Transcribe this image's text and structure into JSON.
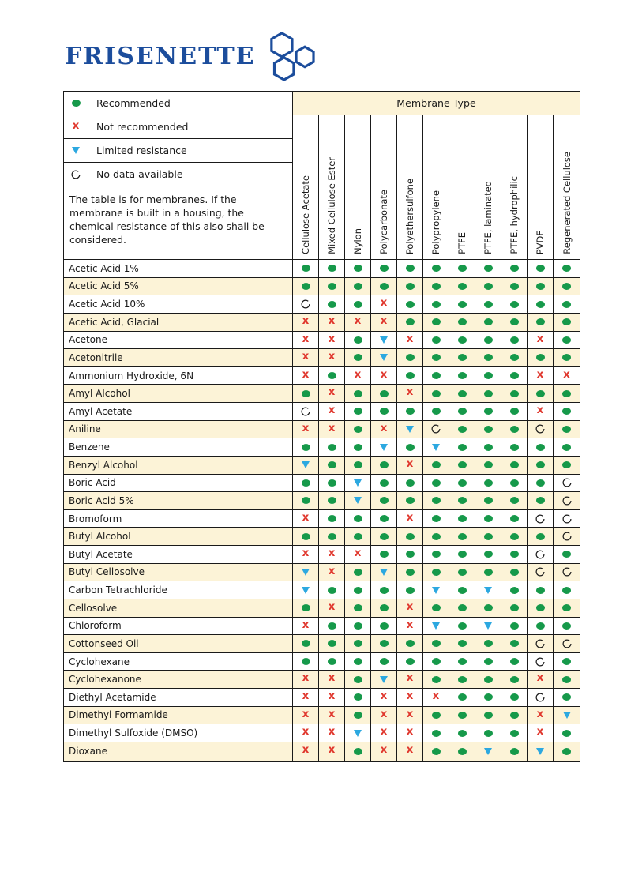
{
  "logo": {
    "text": "FRISENETTE",
    "color": "#1C4D9C"
  },
  "legend": [
    {
      "code": "g",
      "label": "Recommended"
    },
    {
      "code": "x",
      "label": "Not recommended"
    },
    {
      "code": "t",
      "label": "Limited resistance"
    },
    {
      "code": "o",
      "label": "No data available"
    }
  ],
  "note": "The table is for membranes. If the membrane is built in a housing, the chemical resistance of this also shall be considered.",
  "membrane_type_header": "Membrane Type",
  "columns": [
    "Cellulose Acetate",
    "Mixed Cellulose Ester",
    "Nylon",
    "Polycarbonate",
    "Polyethersulfone",
    "Polypropylene",
    "PTFE",
    "PTFE, laminated",
    "PTFE, hydrophilic",
    "PVDF",
    "Regenerated Cellulose"
  ],
  "symbol_key": {
    "g": "recommended",
    "x": "not-recommended",
    "t": "limited-resistance",
    "o": "no-data"
  },
  "rows": [
    {
      "chemical": "Acetic Acid 1%",
      "ratings": [
        "g",
        "g",
        "g",
        "g",
        "g",
        "g",
        "g",
        "g",
        "g",
        "g",
        "g"
      ]
    },
    {
      "chemical": "Acetic Acid 5%",
      "ratings": [
        "g",
        "g",
        "g",
        "g",
        "g",
        "g",
        "g",
        "g",
        "g",
        "g",
        "g"
      ]
    },
    {
      "chemical": "Acetic Acid 10%",
      "ratings": [
        "o",
        "g",
        "g",
        "x",
        "g",
        "g",
        "g",
        "g",
        "g",
        "g",
        "g"
      ]
    },
    {
      "chemical": "Acetic Acid, Glacial",
      "ratings": [
        "x",
        "x",
        "x",
        "x",
        "g",
        "g",
        "g",
        "g",
        "g",
        "g",
        "g"
      ]
    },
    {
      "chemical": "Acetone",
      "ratings": [
        "x",
        "x",
        "g",
        "t",
        "x",
        "g",
        "g",
        "g",
        "g",
        "x",
        "g"
      ]
    },
    {
      "chemical": "Acetonitrile",
      "ratings": [
        "x",
        "x",
        "g",
        "t",
        "g",
        "g",
        "g",
        "g",
        "g",
        "g",
        "g"
      ]
    },
    {
      "chemical": "Ammonium Hydroxide, 6N",
      "ratings": [
        "x",
        "g",
        "x",
        "x",
        "g",
        "g",
        "g",
        "g",
        "g",
        "x",
        "x"
      ]
    },
    {
      "chemical": "Amyl Alcohol",
      "ratings": [
        "g",
        "x",
        "g",
        "g",
        "x",
        "g",
        "g",
        "g",
        "g",
        "g",
        "g"
      ]
    },
    {
      "chemical": "Amyl Acetate",
      "ratings": [
        "o",
        "x",
        "g",
        "g",
        "g",
        "g",
        "g",
        "g",
        "g",
        "x",
        "g"
      ]
    },
    {
      "chemical": "Aniline",
      "ratings": [
        "x",
        "x",
        "g",
        "x",
        "t",
        "o",
        "g",
        "g",
        "g",
        "o",
        "g"
      ]
    },
    {
      "chemical": "Benzene",
      "ratings": [
        "g",
        "g",
        "g",
        "t",
        "g",
        "t",
        "g",
        "g",
        "g",
        "g",
        "g"
      ]
    },
    {
      "chemical": "Benzyl Alcohol",
      "ratings": [
        "t",
        "g",
        "g",
        "g",
        "x",
        "g",
        "g",
        "g",
        "g",
        "g",
        "g"
      ]
    },
    {
      "chemical": "Boric Acid",
      "ratings": [
        "g",
        "g",
        "t",
        "g",
        "g",
        "g",
        "g",
        "g",
        "g",
        "g",
        "o"
      ]
    },
    {
      "chemical": "Boric Acid 5%",
      "ratings": [
        "g",
        "g",
        "t",
        "g",
        "g",
        "g",
        "g",
        "g",
        "g",
        "g",
        "o"
      ]
    },
    {
      "chemical": "Bromoform",
      "ratings": [
        "x",
        "g",
        "g",
        "g",
        "x",
        "g",
        "g",
        "g",
        "g",
        "o",
        "o"
      ]
    },
    {
      "chemical": "Butyl Alcohol",
      "ratings": [
        "g",
        "g",
        "g",
        "g",
        "g",
        "g",
        "g",
        "g",
        "g",
        "g",
        "o"
      ]
    },
    {
      "chemical": "Butyl Acetate",
      "ratings": [
        "x",
        "x",
        "x",
        "g",
        "g",
        "g",
        "g",
        "g",
        "g",
        "o",
        "g"
      ]
    },
    {
      "chemical": "Butyl Cellosolve",
      "ratings": [
        "t",
        "x",
        "g",
        "t",
        "g",
        "g",
        "g",
        "g",
        "g",
        "o",
        "o"
      ]
    },
    {
      "chemical": "Carbon Tetrachloride",
      "ratings": [
        "t",
        "g",
        "g",
        "g",
        "g",
        "t",
        "g",
        "t",
        "g",
        "g",
        "g"
      ]
    },
    {
      "chemical": "Cellosolve",
      "ratings": [
        "g",
        "x",
        "g",
        "g",
        "x",
        "g",
        "g",
        "g",
        "g",
        "g",
        "g"
      ]
    },
    {
      "chemical": "Chloroform",
      "ratings": [
        "x",
        "g",
        "g",
        "g",
        "x",
        "t",
        "g",
        "t",
        "g",
        "g",
        "g"
      ]
    },
    {
      "chemical": "Cottonseed Oil",
      "ratings": [
        "g",
        "g",
        "g",
        "g",
        "g",
        "g",
        "g",
        "g",
        "g",
        "o",
        "o"
      ]
    },
    {
      "chemical": "Cyclohexane",
      "ratings": [
        "g",
        "g",
        "g",
        "g",
        "g",
        "g",
        "g",
        "g",
        "g",
        "o",
        "g"
      ]
    },
    {
      "chemical": "Cyclohexanone",
      "ratings": [
        "x",
        "x",
        "g",
        "t",
        "x",
        "g",
        "g",
        "g",
        "g",
        "x",
        "g"
      ]
    },
    {
      "chemical": "Diethyl Acetamide",
      "ratings": [
        "x",
        "x",
        "g",
        "x",
        "x",
        "x",
        "g",
        "g",
        "g",
        "o",
        "g"
      ]
    },
    {
      "chemical": "Dimethyl Formamide",
      "ratings": [
        "x",
        "x",
        "g",
        "x",
        "x",
        "g",
        "g",
        "g",
        "g",
        "x",
        "t"
      ]
    },
    {
      "chemical": "Dimethyl Sulfoxide (DMSO)",
      "ratings": [
        "x",
        "x",
        "t",
        "x",
        "x",
        "g",
        "g",
        "g",
        "g",
        "x",
        "g"
      ]
    },
    {
      "chemical": "Dioxane",
      "ratings": [
        "x",
        "x",
        "g",
        "x",
        "x",
        "g",
        "g",
        "t",
        "g",
        "t",
        "g"
      ]
    }
  ],
  "colors": {
    "recommended": "#16994A",
    "not_recommended": "#E0382E",
    "limited_resistance": "#2CA8E0",
    "row_highlight": "#FCF3D7",
    "logo_blue": "#1C4D9C",
    "border": "#1a1a1a"
  }
}
